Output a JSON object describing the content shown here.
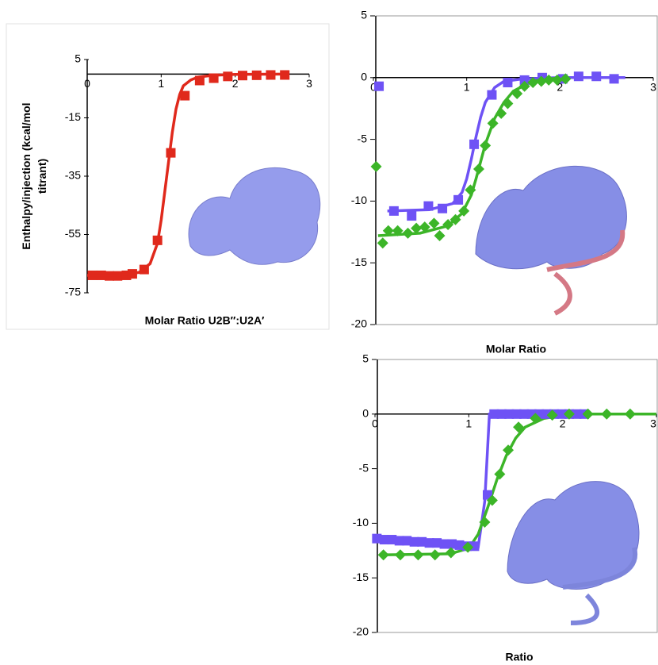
{
  "chart_data": [
    {
      "type": "scatter",
      "y_label": "Enthalpy/injection (kcal/mol titrant)",
      "x_label": "Molar Ratio U2B″:U2A′",
      "xlim": [
        0,
        3
      ],
      "xticks": [
        0,
        1,
        2,
        3
      ],
      "ylim": [
        -75,
        5
      ],
      "yticks": [
        5,
        -15,
        -35,
        -55,
        -75
      ],
      "frame": false,
      "series": [
        {
          "color": "#e0291c",
          "marker": "square",
          "mode": "markers",
          "x": [
            0.07,
            0.19,
            0.3,
            0.41,
            0.53,
            0.61,
            0.77,
            0.95,
            1.13,
            1.32,
            1.52,
            1.71,
            1.9,
            2.1,
            2.29,
            2.48,
            2.67
          ],
          "values": [
            -69,
            -69,
            -69.2,
            -69.2,
            -69,
            -68.5,
            -67,
            -57,
            -27,
            -7.4,
            -2.2,
            -1.4,
            -0.8,
            -0.5,
            -0.4,
            -0.3,
            -0.3
          ]
        },
        {
          "color": "#e0291c",
          "mode": "line",
          "x": [
            0,
            0.4,
            0.7,
            0.85,
            0.95,
            1.0,
            1.05,
            1.1,
            1.15,
            1.2,
            1.25,
            1.3,
            1.4,
            1.5,
            1.7,
            2.0,
            2.7
          ],
          "values": [
            -69,
            -69,
            -68,
            -65,
            -58,
            -50,
            -40,
            -30,
            -20,
            -12,
            -7,
            -4,
            -2,
            -1,
            -0.4,
            -0.1,
            0
          ]
        }
      ]
    },
    {
      "type": "scatter",
      "x_label": "Molar Ratio",
      "xlim": [
        0,
        3
      ],
      "xticks": [
        0,
        1,
        2,
        3
      ],
      "ylim": [
        -20,
        5
      ],
      "yticks": [
        5,
        0,
        -5,
        -10,
        -15,
        -20
      ],
      "frame": true,
      "series": [
        {
          "color": "#6e52f5",
          "mode": "line",
          "x": [
            0.15,
            0.6,
            0.85,
            0.95,
            1.0,
            1.05,
            1.1,
            1.15,
            1.2,
            1.3,
            1.4,
            1.6,
            2.0,
            2.7
          ],
          "values": [
            -10.8,
            -10.7,
            -10.2,
            -9.3,
            -8.2,
            -6.6,
            -4.8,
            -3.2,
            -2,
            -0.8,
            -0.3,
            -0.1,
            0,
            0
          ]
        },
        {
          "color": "#3cb528",
          "mode": "line",
          "x": [
            0.05,
            0.5,
            0.8,
            0.95,
            1.05,
            1.1,
            1.15,
            1.2,
            1.3,
            1.4,
            1.5,
            1.7,
            2.0
          ],
          "values": [
            -12.8,
            -12.6,
            -12,
            -11,
            -9.5,
            -8.2,
            -6.8,
            -5.4,
            -3.3,
            -2,
            -1.1,
            -0.3,
            0
          ]
        },
        {
          "color": "#6e52f5",
          "marker": "square",
          "mode": "markers",
          "x": [
            0.06,
            0.22,
            0.41,
            0.59,
            0.74,
            0.91,
            1.08,
            1.27,
            1.44,
            1.62,
            1.81,
            2.03,
            2.2,
            2.39,
            2.58
          ],
          "values": [
            -0.7,
            -10.8,
            -11.2,
            -10.4,
            -10.6,
            -9.9,
            -5.4,
            -1.4,
            -0.4,
            -0.2,
            0,
            -0.1,
            0.1,
            0.1,
            -0.1
          ]
        },
        {
          "color": "#3cb528",
          "marker": "diamond",
          "mode": "markers",
          "x": [
            0.03,
            0.1,
            0.16,
            0.26,
            0.37,
            0.46,
            0.55,
            0.65,
            0.71,
            0.8,
            0.88,
            0.97,
            1.04,
            1.13,
            1.2,
            1.28,
            1.37,
            1.44,
            1.54,
            1.62,
            1.71,
            1.8,
            1.88,
            1.97,
            2.06
          ],
          "values": [
            -7.2,
            -13.4,
            -12.4,
            -12.4,
            -12.6,
            -12.2,
            -12.1,
            -11.8,
            -12.8,
            -11.9,
            -11.5,
            -10.8,
            -9.1,
            -7.4,
            -5.5,
            -3.7,
            -2.9,
            -2.1,
            -1.3,
            -0.7,
            -0.4,
            -0.3,
            -0.2,
            -0.2,
            -0.1
          ]
        }
      ]
    },
    {
      "type": "scatter",
      "x_label": "Ratio",
      "xlim": [
        0,
        3
      ],
      "xticks": [
        0,
        1,
        2,
        3
      ],
      "ylim": [
        -20,
        5
      ],
      "yticks": [
        5,
        0,
        -5,
        -10,
        -15,
        -20
      ],
      "frame": true,
      "series": [
        {
          "color": "#6e52f5",
          "mode": "line",
          "x": [
            0,
            1.1,
            1.17,
            1.22,
            1.27,
            2.28
          ],
          "values": [
            -11.4,
            -12.2,
            -8,
            0,
            0,
            0
          ]
        },
        {
          "color": "#3cb528",
          "mode": "line",
          "x": [
            0.05,
            0.8,
            1.0,
            1.1,
            1.2,
            1.3,
            1.4,
            1.5,
            1.6,
            1.8,
            2.1,
            3.0
          ],
          "values": [
            -12.9,
            -12.8,
            -12.3,
            -11,
            -8.6,
            -6,
            -3.8,
            -2.2,
            -1.2,
            -0.4,
            0,
            0
          ]
        },
        {
          "color": "#6e52f5",
          "marker": "square",
          "mode": "markers",
          "x": [
            0.02,
            0.1,
            0.18,
            0.26,
            0.34,
            0.42,
            0.5,
            0.58,
            0.66,
            0.74,
            0.82,
            0.9,
            0.98,
            1.06,
            1.2,
            1.27,
            1.35,
            1.43,
            1.51,
            1.59,
            1.67,
            1.75,
            1.83,
            1.91,
            1.99,
            2.07,
            2.15,
            2.23
          ],
          "values": [
            -11.4,
            -11.5,
            -11.5,
            -11.6,
            -11.6,
            -11.7,
            -11.7,
            -11.8,
            -11.8,
            -11.9,
            -11.9,
            -12.0,
            -12.1,
            -12.1,
            -7.4,
            0,
            0,
            0,
            0,
            0,
            0,
            0,
            0,
            0,
            0,
            0,
            0,
            0
          ]
        },
        {
          "color": "#3cb528",
          "marker": "diamond",
          "mode": "markers",
          "x": [
            0.09,
            0.27,
            0.46,
            0.64,
            0.81,
            0.99,
            1.17,
            1.25,
            1.33,
            1.42,
            1.53,
            1.71,
            1.89,
            2.07,
            2.27,
            2.47,
            2.72
          ],
          "values": [
            -12.9,
            -12.9,
            -12.9,
            -12.9,
            -12.7,
            -12.2,
            -9.9,
            -7.9,
            -5.5,
            -3.3,
            -1.2,
            -0.4,
            -0.1,
            0,
            0,
            0,
            0
          ]
        }
      ]
    }
  ]
}
